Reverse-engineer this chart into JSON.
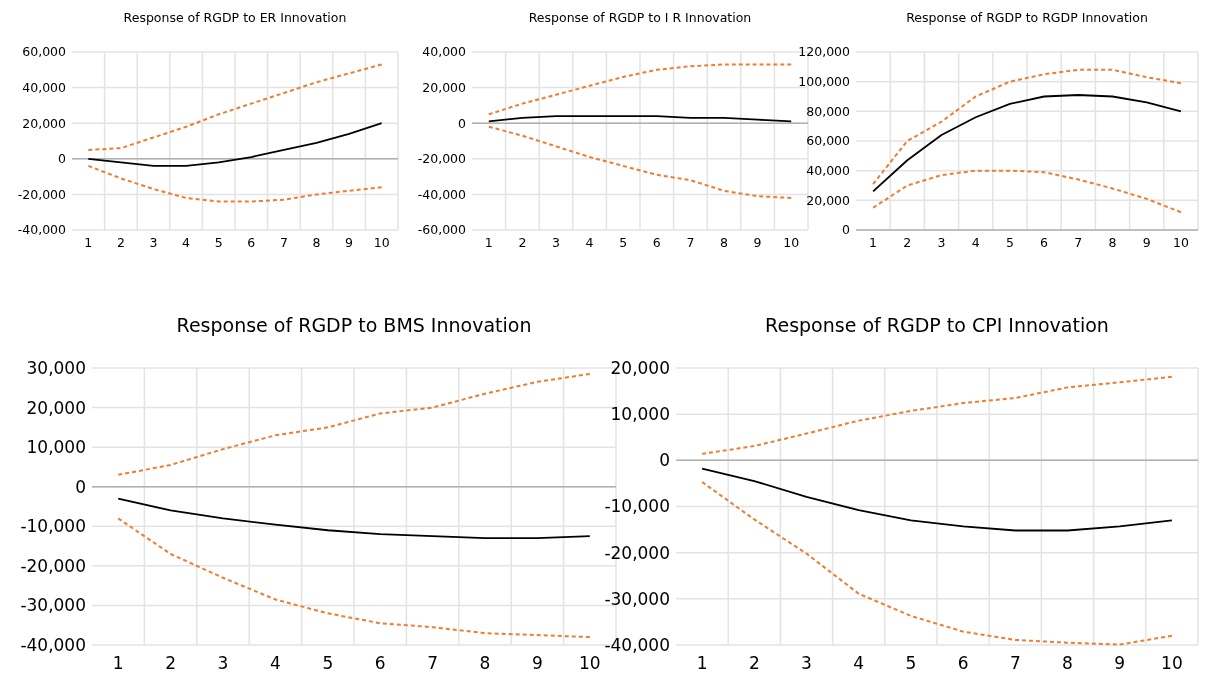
{
  "chart_data": [
    {
      "type": "line",
      "title": "Response of RGDP to ER Innovation",
      "categories": [
        "1",
        "2",
        "3",
        "4",
        "5",
        "6",
        "7",
        "8",
        "9",
        "10"
      ],
      "series": [
        {
          "color": "#ed7d31",
          "line_style": "dashed",
          "values": [
            5000,
            6000,
            12000,
            18000,
            25000,
            31000,
            37000,
            43000,
            48000,
            53000
          ]
        },
        {
          "color": "#000000",
          "line_style": "solid",
          "values": [
            0,
            -2000,
            -4000,
            -4000,
            -2000,
            1000,
            5000,
            9000,
            14000,
            20000
          ]
        },
        {
          "color": "#ed7d31",
          "line_style": "dashed",
          "values": [
            -4000,
            -11000,
            -17000,
            -22000,
            -24000,
            -24000,
            -23000,
            -20000,
            -18000,
            -16000
          ]
        }
      ],
      "ylim": [
        -40000,
        60000
      ],
      "yticks": [
        {
          "value": -40000,
          "label": "-40,000"
        },
        {
          "value": -20000,
          "label": "-20,000"
        },
        {
          "value": 0,
          "label": "0"
        },
        {
          "value": 20000,
          "label": "20,000"
        },
        {
          "value": 40000,
          "label": "40,000"
        },
        {
          "value": 60000,
          "label": "60,000"
        }
      ],
      "grid": true
    },
    {
      "type": "line",
      "title": "Response of RGDP to I R Innovation",
      "categories": [
        "1",
        "2",
        "3",
        "4",
        "5",
        "6",
        "7",
        "8",
        "9",
        "10"
      ],
      "series": [
        {
          "color": "#ed7d31",
          "line_style": "dashed",
          "values": [
            5000,
            11000,
            16000,
            21000,
            26000,
            30000,
            32000,
            33000,
            33000,
            33000
          ]
        },
        {
          "color": "#000000",
          "line_style": "solid",
          "values": [
            1000,
            3000,
            4000,
            4000,
            4000,
            4000,
            3000,
            3000,
            2000,
            1000
          ]
        },
        {
          "color": "#ed7d31",
          "line_style": "dashed",
          "values": [
            -2000,
            -7000,
            -13000,
            -19000,
            -24000,
            -29000,
            -32000,
            -38000,
            -41000,
            -42000
          ]
        }
      ],
      "ylim": [
        -60000,
        40000
      ],
      "yticks": [
        {
          "value": -60000,
          "label": "-60,000"
        },
        {
          "value": -40000,
          "label": "-40,000"
        },
        {
          "value": -20000,
          "label": "-20,000"
        },
        {
          "value": 0,
          "label": "0"
        },
        {
          "value": 20000,
          "label": "20,000"
        },
        {
          "value": 40000,
          "label": "40,000"
        }
      ],
      "grid": true
    },
    {
      "type": "line",
      "title": "Response of RGDP to RGDP Innovation",
      "categories": [
        "1",
        "2",
        "3",
        "4",
        "5",
        "6",
        "7",
        "8",
        "9",
        "10"
      ],
      "series": [
        {
          "color": "#ed7d31",
          "line_style": "dashed",
          "values": [
            31000,
            60000,
            73000,
            90000,
            100000,
            105000,
            108000,
            108000,
            103000,
            99000
          ]
        },
        {
          "color": "#000000",
          "line_style": "solid",
          "values": [
            26000,
            47000,
            64000,
            76000,
            85000,
            90000,
            91000,
            90000,
            86000,
            80000
          ]
        },
        {
          "color": "#ed7d31",
          "line_style": "dashed",
          "values": [
            15000,
            30000,
            37000,
            40000,
            40000,
            39000,
            34000,
            28000,
            21000,
            12000
          ]
        }
      ],
      "ylim": [
        0,
        120000
      ],
      "yticks": [
        {
          "value": 0,
          "label": "0"
        },
        {
          "value": 20000,
          "label": "20,000"
        },
        {
          "value": 40000,
          "label": "40,000"
        },
        {
          "value": 60000,
          "label": "60,000"
        },
        {
          "value": 80000,
          "label": "80,000"
        },
        {
          "value": 100000,
          "label": "100,000"
        },
        {
          "value": 120000,
          "label": "120,000"
        }
      ],
      "grid": true
    },
    {
      "type": "line",
      "title": "Response of RGDP to BMS Innovation",
      "categories": [
        "1",
        "2",
        "3",
        "4",
        "5",
        "6",
        "7",
        "8",
        "9",
        "10"
      ],
      "series": [
        {
          "color": "#ed7d31",
          "line_style": "dashed",
          "values": [
            3000,
            5500,
            9500,
            13000,
            15000,
            18500,
            20000,
            23500,
            26500,
            28500
          ]
        },
        {
          "color": "#000000",
          "line_style": "solid",
          "values": [
            -3000,
            -6000,
            -8000,
            -9600,
            -11000,
            -12000,
            -12500,
            -13000,
            -13000,
            -12500
          ]
        },
        {
          "color": "#ed7d31",
          "line_style": "dashed",
          "values": [
            -8000,
            -17000,
            -23000,
            -28500,
            -32000,
            -34500,
            -35500,
            -37000,
            -37500,
            -38000
          ]
        }
      ],
      "ylim": [
        -40000,
        30000
      ],
      "yticks": [
        {
          "value": -40000,
          "label": "-40,000"
        },
        {
          "value": -30000,
          "label": "-30,000"
        },
        {
          "value": -20000,
          "label": "-20,000"
        },
        {
          "value": -10000,
          "label": "-10,000"
        },
        {
          "value": 0,
          "label": "0"
        },
        {
          "value": 10000,
          "label": "10,000"
        },
        {
          "value": 20000,
          "label": "20,000"
        },
        {
          "value": 30000,
          "label": "30,000"
        }
      ],
      "grid": true
    },
    {
      "type": "line",
      "title": "Response of RGDP to CPI Innovation",
      "categories": [
        "1",
        "2",
        "3",
        "4",
        "5",
        "6",
        "7",
        "8",
        "9",
        "10"
      ],
      "series": [
        {
          "color": "#ed7d31",
          "line_style": "dashed",
          "values": [
            1400,
            3100,
            5800,
            8600,
            10700,
            12400,
            13500,
            15800,
            16900,
            18100
          ]
        },
        {
          "color": "#000000",
          "line_style": "solid",
          "values": [
            -1800,
            -4500,
            -7900,
            -10800,
            -13000,
            -14300,
            -15200,
            -15200,
            -14300,
            -13000
          ]
        },
        {
          "color": "#ed7d31",
          "line_style": "dashed",
          "values": [
            -4700,
            -12800,
            -20200,
            -28900,
            -33700,
            -37100,
            -38900,
            -39500,
            -39900,
            -38000
          ]
        }
      ],
      "ylim": [
        -40000,
        20000
      ],
      "yticks": [
        {
          "value": -40000,
          "label": "-40,000"
        },
        {
          "value": -30000,
          "label": "-30,000"
        },
        {
          "value": -20000,
          "label": "-20,000"
        },
        {
          "value": -10000,
          "label": "-10,000"
        },
        {
          "value": 0,
          "label": "0"
        },
        {
          "value": 10000,
          "label": "10,000"
        },
        {
          "value": 20000,
          "label": "20,000"
        }
      ],
      "grid": true
    }
  ]
}
